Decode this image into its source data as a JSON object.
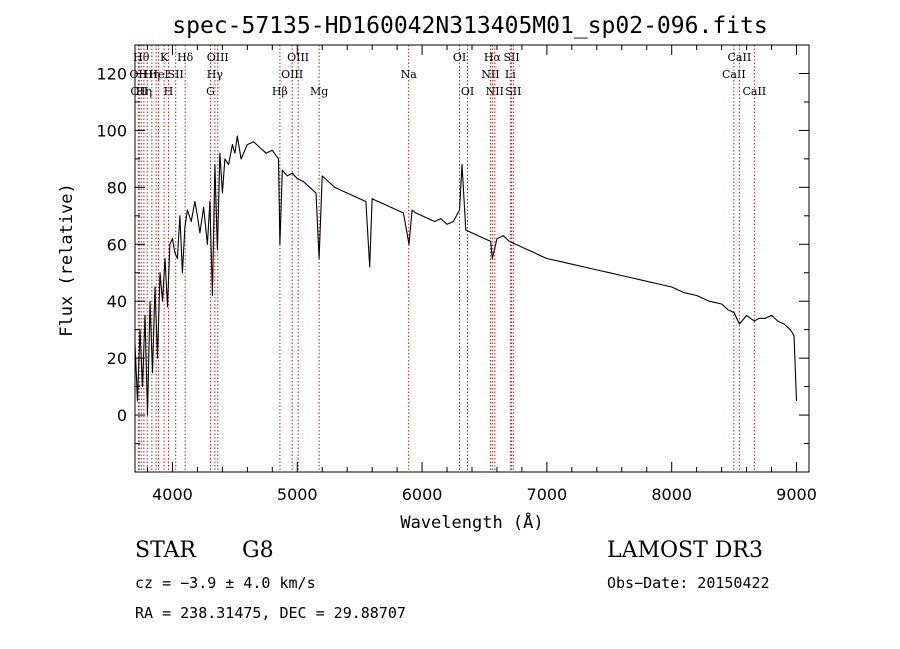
{
  "chart_data": {
    "type": "line",
    "title": "spec-57135-HD160042N313405M01_sp02-096.fits",
    "xlabel": "Wavelength (Å)",
    "ylabel": "Flux (relative)",
    "xlim": [
      3700,
      9100
    ],
    "ylim": [
      -20,
      130
    ],
    "xticks": [
      4000,
      5000,
      6000,
      7000,
      8000,
      9000
    ],
    "yticks": [
      0,
      20,
      40,
      60,
      80,
      100,
      120
    ],
    "line_color": "#000000",
    "marker_color": "#b22222",
    "series": [
      {
        "name": "flux",
        "x": [
          3700,
          3720,
          3740,
          3760,
          3780,
          3800,
          3820,
          3840,
          3860,
          3880,
          3900,
          3920,
          3940,
          3960,
          3980,
          4000,
          4020,
          4040,
          4060,
          4080,
          4100,
          4120,
          4150,
          4180,
          4200,
          4220,
          4250,
          4280,
          4300,
          4320,
          4340,
          4360,
          4380,
          4400,
          4420,
          4450,
          4480,
          4500,
          4520,
          4550,
          4600,
          4650,
          4700,
          4750,
          4800,
          4850,
          4861,
          4880,
          4920,
          4960,
          5000,
          5050,
          5100,
          5150,
          5175,
          5200,
          5250,
          5300,
          5350,
          5400,
          5450,
          5500,
          5550,
          5580,
          5600,
          5650,
          5700,
          5750,
          5800,
          5850,
          5895,
          5920,
          5950,
          6000,
          6050,
          6100,
          6150,
          6200,
          6250,
          6300,
          6320,
          6350,
          6400,
          6450,
          6500,
          6550,
          6563,
          6600,
          6650,
          6700,
          6750,
          6800,
          6850,
          6900,
          6950,
          7000,
          7100,
          7200,
          7300,
          7400,
          7500,
          7600,
          7700,
          7800,
          7900,
          8000,
          8100,
          8200,
          8300,
          8400,
          8450,
          8500,
          8542,
          8600,
          8662,
          8700,
          8750,
          8800,
          8850,
          8900,
          8950,
          8980,
          9000
        ],
        "y": [
          25,
          5,
          30,
          10,
          35,
          0,
          40,
          15,
          45,
          20,
          50,
          40,
          55,
          38,
          60,
          62,
          57,
          55,
          70,
          50,
          66,
          72,
          68,
          75,
          70,
          64,
          73,
          60,
          75,
          42,
          88,
          58,
          92,
          78,
          90,
          88,
          95,
          92,
          98,
          90,
          95,
          96,
          94,
          92,
          93,
          90,
          60,
          86,
          84,
          85,
          83,
          82,
          80,
          78,
          55,
          84,
          82,
          80,
          79,
          78,
          77,
          76,
          75,
          52,
          76,
          75,
          74,
          73,
          72,
          71,
          60,
          72,
          71,
          70,
          69,
          68,
          69,
          67,
          68,
          72,
          88,
          65,
          64,
          63,
          62,
          61,
          55,
          62,
          63,
          61,
          60,
          59,
          58,
          57,
          56,
          55,
          54,
          53,
          52,
          51,
          50,
          49,
          48,
          47,
          46,
          45,
          43,
          42,
          40,
          39,
          37,
          36,
          32,
          35,
          33,
          34,
          34,
          35,
          33,
          32,
          30,
          28,
          5
        ]
      }
    ],
    "line_markers": [
      {
        "x": 3727,
        "label": "OII",
        "row": 2
      },
      {
        "x": 3734,
        "label": "OII",
        "row": 3
      },
      {
        "x": 3750,
        "label": "Hθ",
        "row": 1
      },
      {
        "x": 3771,
        "label": "Hη",
        "row": 3
      },
      {
        "x": 3798,
        "label": "",
        "row": 0
      },
      {
        "x": 3835,
        "label": "Hη",
        "row": 2
      },
      {
        "x": 3869,
        "label": "",
        "row": 0
      },
      {
        "x": 3889,
        "label": "HeI",
        "row": 2
      },
      {
        "x": 3933,
        "label": "K",
        "row": 1
      },
      {
        "x": 3968,
        "label": "H",
        "row": 3
      },
      {
        "x": 4026,
        "label": "SII",
        "row": 2
      },
      {
        "x": 4102,
        "label": "Hδ",
        "row": 1
      },
      {
        "x": 4305,
        "label": "G",
        "row": 3
      },
      {
        "x": 4340,
        "label": "Hγ",
        "row": 2
      },
      {
        "x": 4363,
        "label": "OIII",
        "row": 1
      },
      {
        "x": 4861,
        "label": "Hβ",
        "row": 3
      },
      {
        "x": 4959,
        "label": "OIII",
        "row": 2
      },
      {
        "x": 5007,
        "label": "OIII",
        "row": 1
      },
      {
        "x": 5175,
        "label": "Mg",
        "row": 3
      },
      {
        "x": 5893,
        "label": "Na",
        "row": 2
      },
      {
        "x": 6300,
        "label": "OI",
        "row": 1
      },
      {
        "x": 6364,
        "label": "OI",
        "row": 3
      },
      {
        "x": 6548,
        "label": "NII",
        "row": 2
      },
      {
        "x": 6563,
        "label": "Hα",
        "row": 1
      },
      {
        "x": 6583,
        "label": "NII",
        "row": 3
      },
      {
        "x": 6707,
        "label": "Li",
        "row": 2
      },
      {
        "x": 6717,
        "label": "SII",
        "row": 1
      },
      {
        "x": 6731,
        "label": "SII",
        "row": 3
      },
      {
        "x": 8498,
        "label": "CaII",
        "row": 2
      },
      {
        "x": 8542,
        "label": "CaII",
        "row": 1
      },
      {
        "x": 8662,
        "label": "CaII",
        "row": 3
      }
    ]
  },
  "info": {
    "object_type": "STAR",
    "subclass": "G8",
    "survey": "LAMOST DR3",
    "redshift": "cz = −3.9 ± 4.0 km/s",
    "obs_date": "Obs−Date: 20150422",
    "coords": "RA = 238.31475, DEC =  29.88707"
  }
}
